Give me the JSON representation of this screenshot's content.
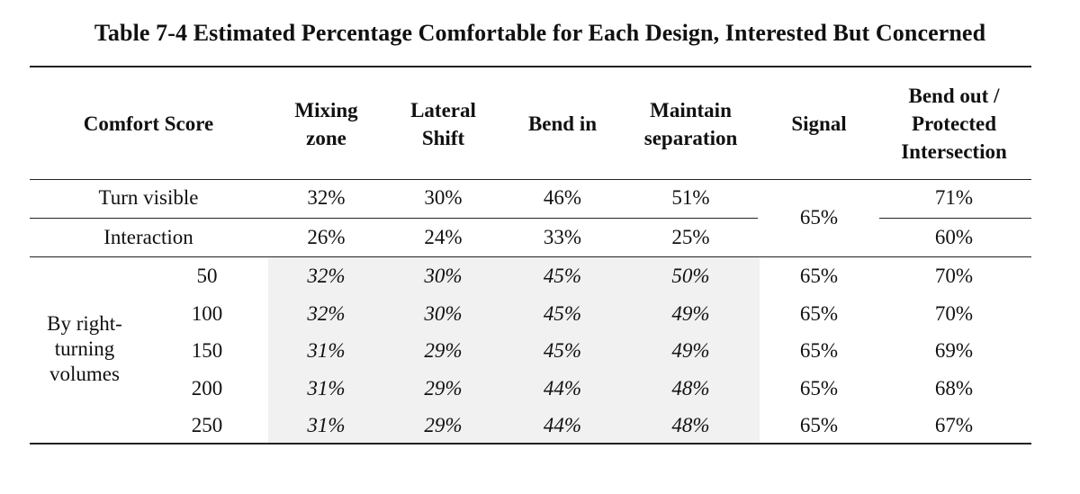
{
  "title": "Table 7-4 Estimated Percentage Comfortable for Each Design, Interested But Concerned",
  "headers": {
    "comfort": "Comfort Score",
    "mixing": [
      "Mixing",
      "zone"
    ],
    "lateral": [
      "Lateral",
      "Shift"
    ],
    "bendin": "Bend in",
    "maintain": [
      "Maintain",
      "separation"
    ],
    "signal": "Signal",
    "bendout": [
      "Bend out /",
      "Protected",
      "Intersection"
    ]
  },
  "rows": {
    "turn_visible": {
      "label": "Turn visible",
      "values": [
        "32%",
        "30%",
        "46%",
        "51%"
      ],
      "bendout": "71%"
    },
    "interaction": {
      "label": "Interaction",
      "values": [
        "26%",
        "24%",
        "33%",
        "25%"
      ],
      "bendout": "60%"
    },
    "signal_merged": "65%"
  },
  "group": {
    "label": [
      "By right-",
      "turning",
      "volumes"
    ],
    "rows": [
      {
        "volume": "50",
        "values": [
          "32%",
          "30%",
          "45%",
          "50%"
        ],
        "signal": "65%",
        "bendout": "70%"
      },
      {
        "volume": "100",
        "values": [
          "32%",
          "30%",
          "45%",
          "49%"
        ],
        "signal": "65%",
        "bendout": "70%"
      },
      {
        "volume": "150",
        "values": [
          "31%",
          "29%",
          "45%",
          "49%"
        ],
        "signal": "65%",
        "bendout": "69%"
      },
      {
        "volume": "200",
        "values": [
          "31%",
          "29%",
          "44%",
          "48%"
        ],
        "signal": "65%",
        "bendout": "68%"
      },
      {
        "volume": "250",
        "values": [
          "31%",
          "29%",
          "44%",
          "48%"
        ],
        "signal": "65%",
        "bendout": "67%"
      }
    ]
  }
}
